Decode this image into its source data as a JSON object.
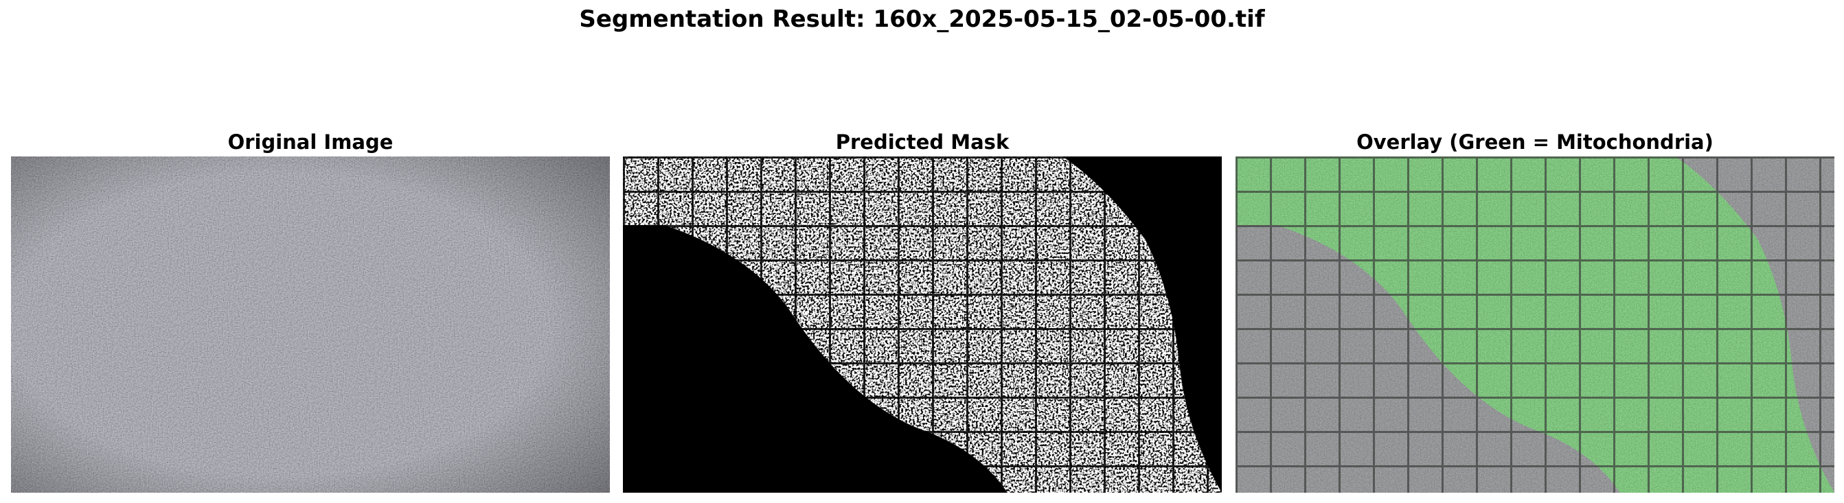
{
  "figure": {
    "title": "Segmentation Result: 160x_2025-05-15_02-05-00.tif"
  },
  "panels": [
    {
      "id": "original",
      "title": "Original Image"
    },
    {
      "id": "mask",
      "title": "Predicted Mask"
    },
    {
      "id": "overlay",
      "title": "Overlay (Green = Mitochondria)"
    }
  ],
  "colors": {
    "original_base": "#8f918d",
    "mask_foreground": "#ffffff",
    "mask_background": "#000000",
    "overlay_highlight": "#4cc84c"
  }
}
